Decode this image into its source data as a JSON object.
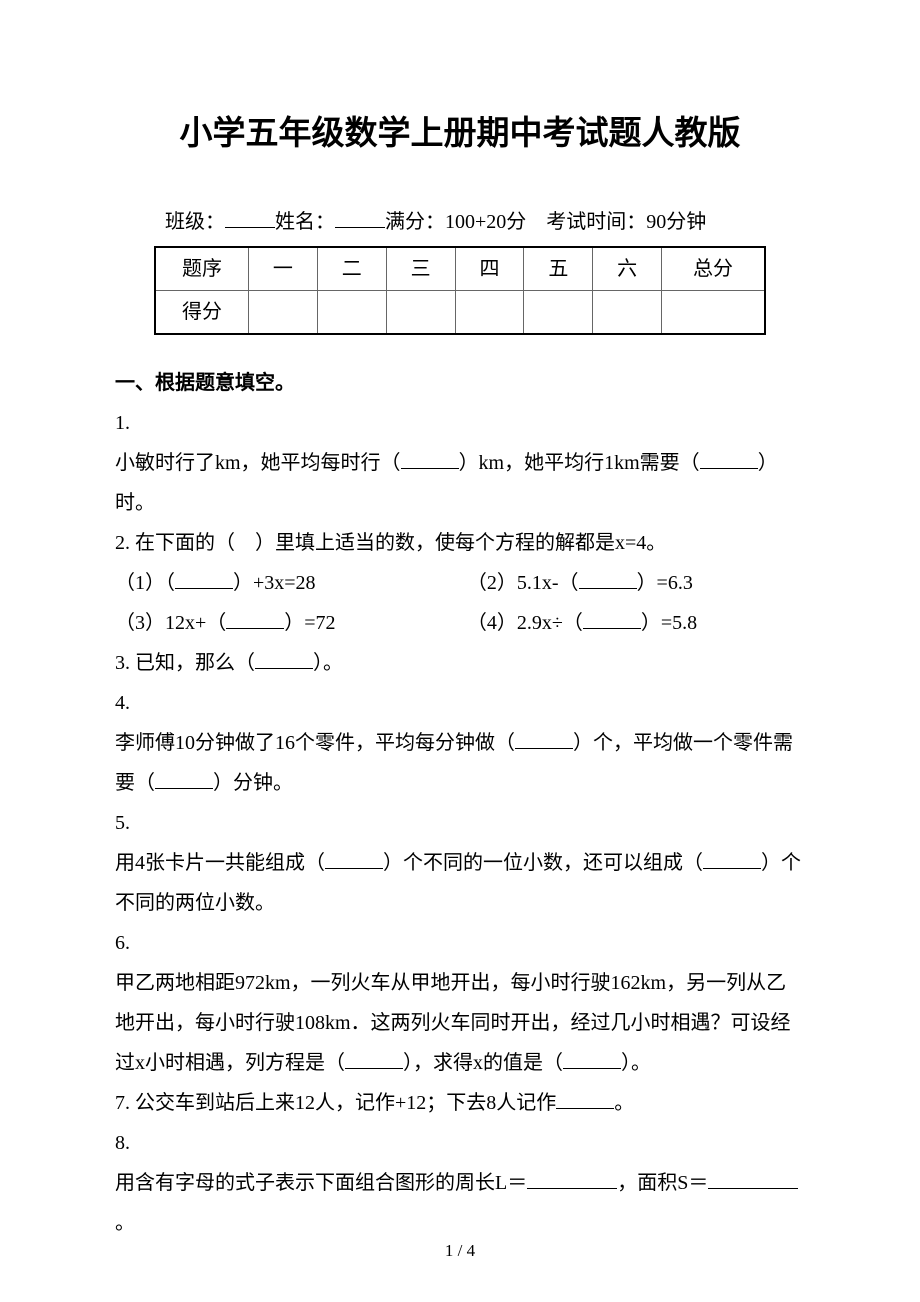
{
  "title": "小学五年级数学上册期中考试题人教版",
  "info": {
    "class_label": "班级：",
    "name_label": "姓名：",
    "full_marks_label": "满分：",
    "full_marks_value": "100+20分",
    "duration_label": "考试时间：",
    "duration_value": "90分钟"
  },
  "score_table": {
    "row1_label": "题序",
    "cols": [
      "一",
      "二",
      "三",
      "四",
      "五",
      "六"
    ],
    "total_label": "总分",
    "row2_label": "得分"
  },
  "section1": {
    "heading": "一、根据题意填空。",
    "q1_num": "1.",
    "q1_text_a": "小敏时行了km，她平均每时行（",
    "q1_text_b": "）km，她平均行1km需要（",
    "q1_text_c": "）时。",
    "q2": "2. 在下面的（　）里填上适当的数，使每个方程的解都是x=4。",
    "q2_1a": "（1）（",
    "q2_1b": "）+3x=28",
    "q2_2a": "（2）5.1x-（",
    "q2_2b": "）=6.3",
    "q2_3a": "（3）12x+（",
    "q2_3b": "）=72",
    "q2_4a": "（4）2.9x÷（",
    "q2_4b": "）=5.8",
    "q3a": "3. 已知，那么（",
    "q3b": "）。",
    "q4_num": "4.",
    "q4a": "李师傅10分钟做了16个零件，平均每分钟做（",
    "q4b": "）个，平均做一个零件需要（",
    "q4c": "）分钟。",
    "q5_num": "5.",
    "q5a": "用4张卡片一共能组成（",
    "q5b": "）个不同的一位小数，还可以组成（",
    "q5c": "）个不同的两位小数。",
    "q6_num": "6.",
    "q6a": "甲乙两地相距972km，一列火车从甲地开出，每小时行驶162km，另一列从乙地开出，每小时行驶108km．这两列火车同时开出，经过几小时相遇？可设经过x小时相遇，列方程是（",
    "q6b": "），求得x的值是（",
    "q6c": "）。",
    "q7a": "7. 公交车到站后上来12人，记作+12；下去8人记作",
    "q7b": "。",
    "q8_num": "8.",
    "q8a": "用含有字母的式子表示下面组合图形的周长L＝",
    "q8b": "，面积S＝",
    "q8c": "。"
  },
  "page_number": "1 / 4"
}
